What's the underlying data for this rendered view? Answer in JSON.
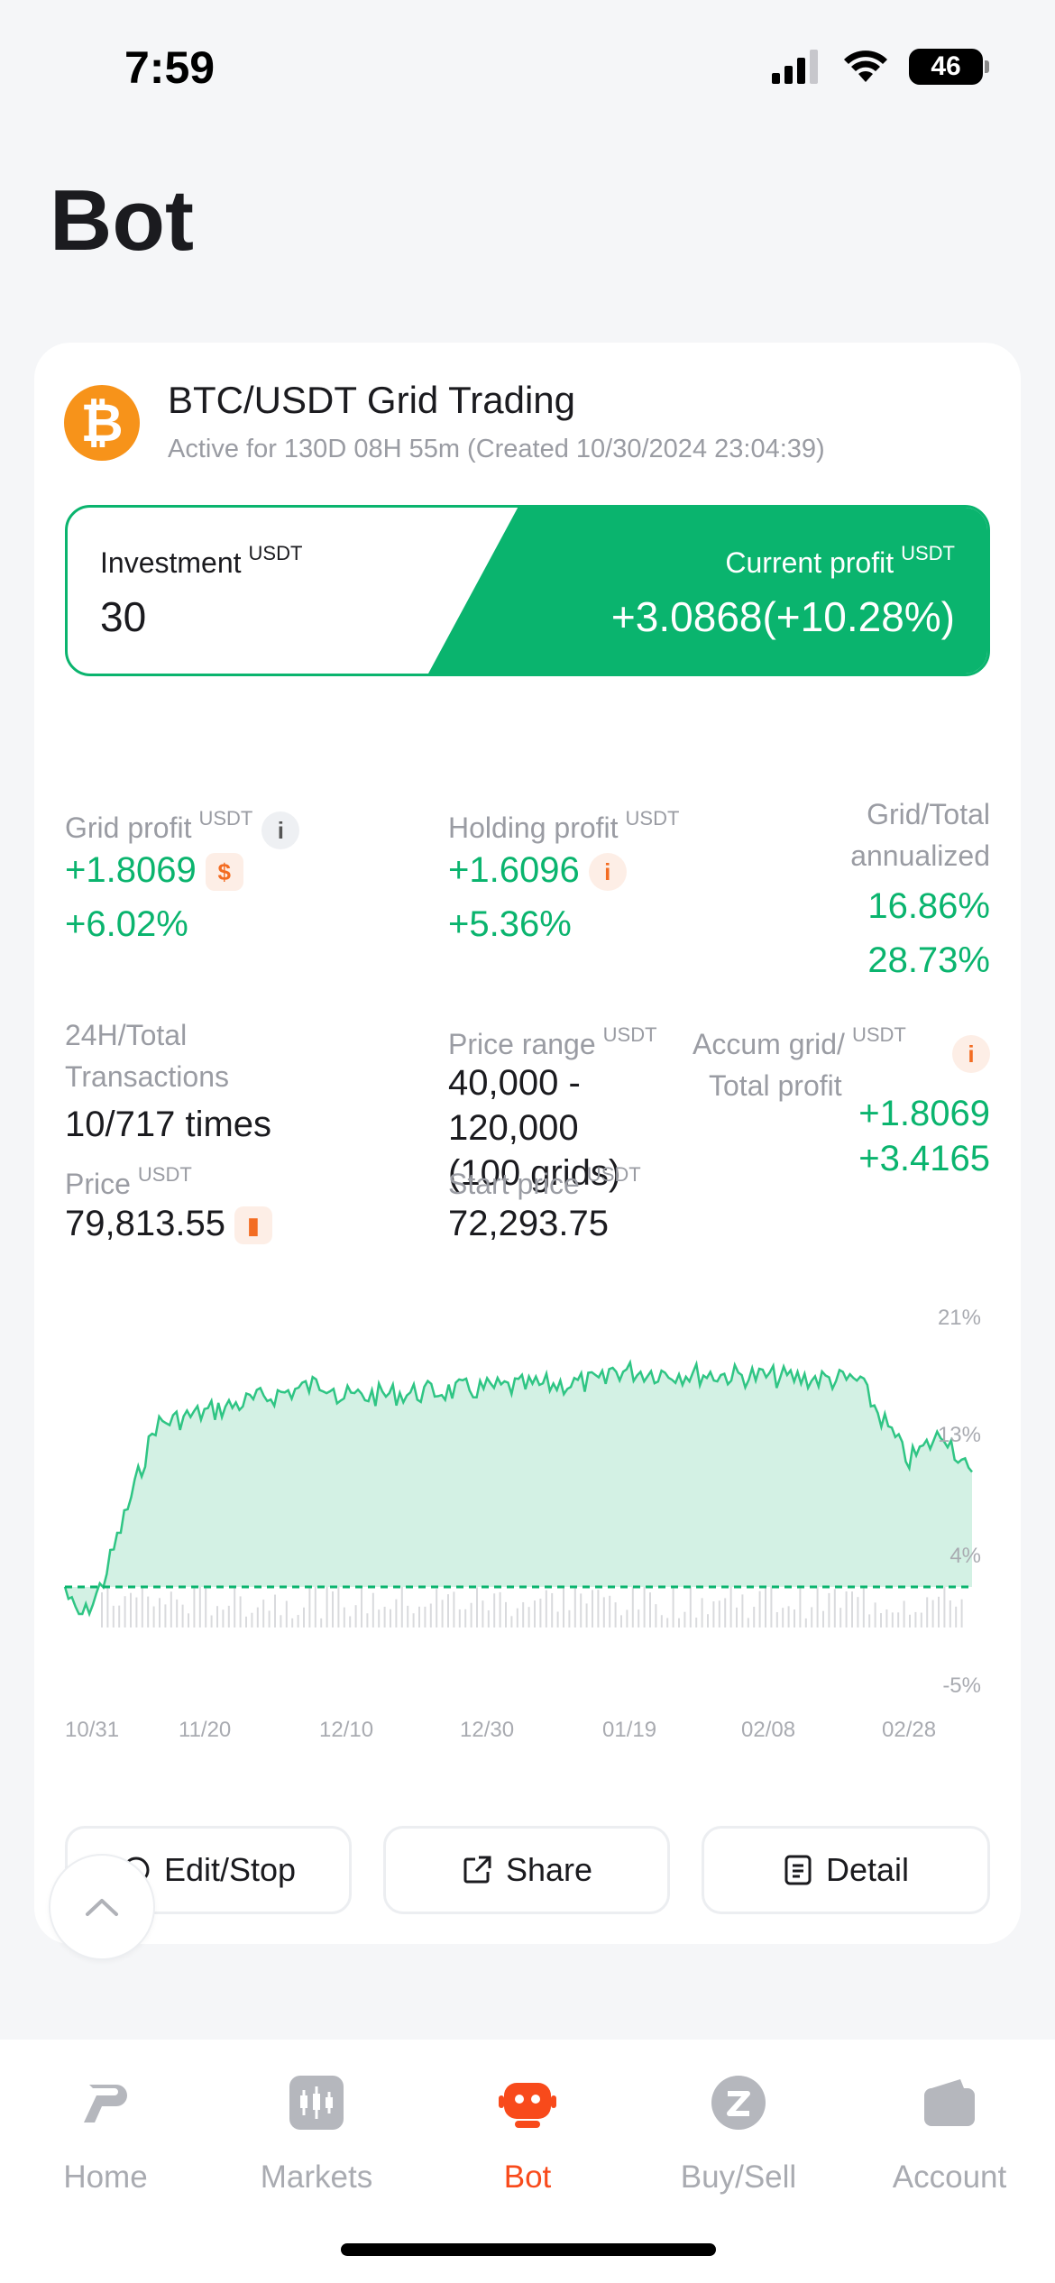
{
  "status_bar": {
    "time": "7:59",
    "battery": "46"
  },
  "page_title": "Bot",
  "bot": {
    "name": "BTC/USDT Grid Trading",
    "subtitle": "Active for 130D 08H 55m (Created 10/30/2024 23:04:39)",
    "coin_symbol": "₿"
  },
  "investment": {
    "label": "Investment",
    "unit": "USDT",
    "value": "30",
    "profit_label": "Current profit",
    "profit_unit": "USDT",
    "profit_value": "+3.0868(+10.28%)"
  },
  "stats": {
    "grid_profit_label": "Grid profit",
    "grid_profit_unit": "USDT",
    "grid_profit_value": "+1.8069",
    "grid_profit_pct": "+6.02%",
    "holding_profit_label": "Holding profit",
    "holding_profit_unit": "USDT",
    "holding_profit_value": "+1.6096",
    "holding_profit_pct": "+5.36%",
    "annualized_label_1": "Grid/Total",
    "annualized_label_2": "annualized",
    "annualized_grid": "16.86%",
    "annualized_total": "28.73%",
    "tx_label_1": "24H/Total",
    "tx_label_2": "Transactions",
    "tx_value": "10/717 times",
    "price_range_label": "Price range",
    "price_range_unit": "USDT",
    "price_range_value_1": "40,000 -",
    "price_range_value_2": "120,000",
    "price_range_value_3": "(100 grids)",
    "accum_label_1": "Accum grid/",
    "accum_label_2": "Total profit",
    "accum_unit": "USDT",
    "accum_grid": "+1.8069",
    "accum_total": "+3.4165",
    "price_label": "Price",
    "price_unit": "USDT",
    "price_value": "79,813.55",
    "start_price_label": "Start price",
    "start_price_unit": "USDT",
    "start_price_value": "72,293.75"
  },
  "chart": {
    "x_ticks": [
      "10/31",
      "11/20",
      "12/10",
      "12/30",
      "01/19",
      "02/08",
      "02/28"
    ],
    "y_ticks": [
      "21%",
      "13%",
      "4%",
      "-5%"
    ],
    "ylim": [
      -5,
      21
    ],
    "colors": {
      "line": "#2fc584",
      "fill": "#d3f1e4",
      "baseline": "#0ab46e",
      "volume": "#d9dadd"
    }
  },
  "actions": {
    "edit_stop": "Edit/Stop",
    "share": "Share",
    "detail": "Detail"
  },
  "tabs": [
    {
      "label": "Home",
      "icon": "home-icon"
    },
    {
      "label": "Markets",
      "icon": "markets-icon"
    },
    {
      "label": "Bot",
      "icon": "bot-icon"
    },
    {
      "label": "Buy/Sell",
      "icon": "buy-sell-icon"
    },
    {
      "label": "Account",
      "icon": "wallet-icon"
    }
  ],
  "colors": {
    "accent": "#f84a1b",
    "positive": "#0ab46e",
    "muted": "#a9abb1"
  }
}
